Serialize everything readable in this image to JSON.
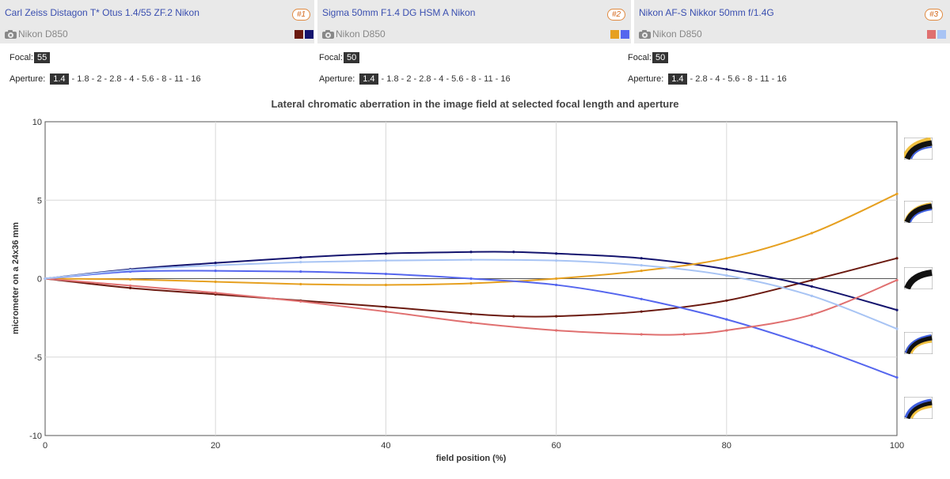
{
  "lenses": [
    {
      "name": "Carl Zeiss Distagon T* Otus 1.4/55 ZF.2 Nikon",
      "badge": "#1",
      "camera": "Nikon D850",
      "colors": [
        "#6b1a10",
        "#14146e"
      ],
      "focal_label": "Focal:",
      "focal": "55",
      "aperture_label": "Aperture:",
      "aperture": "1.4",
      "aperture_rest": " - 1.8 - 2 - 2.8 - 4 - 5.6 - 8 - 11 - 16"
    },
    {
      "name": "Sigma 50mm F1.4 DG HSM A Nikon",
      "badge": "#2",
      "camera": "Nikon D850",
      "colors": [
        "#e6a020",
        "#5566ee"
      ],
      "focal_label": "Focal:",
      "focal": "50",
      "aperture_label": "Aperture:",
      "aperture": "1.4",
      "aperture_rest": " - 1.8 - 2 - 2.8 - 4 - 5.6 - 8 - 11 - 16"
    },
    {
      "name": "Nikon AF-S Nikkor 50mm f/1.4G",
      "badge": "#3",
      "camera": "Nikon D850",
      "colors": [
        "#e07070",
        "#a8c4f4"
      ],
      "focal_label": "Focal:",
      "focal": "50",
      "aperture_label": "Aperture:",
      "aperture": "1.4",
      "aperture_rest": " - 2.8 - 4 - 5.6 - 8 - 11 - 16"
    }
  ],
  "chart_data": {
    "type": "line",
    "title": "Lateral chromatic aberration in the image field at selected focal length and aperture",
    "xlabel": "field position (%)",
    "ylabel": "micrometer on a 24x36 mm",
    "xlim": [
      0,
      100
    ],
    "ylim": [
      -10,
      10
    ],
    "xticks": [
      0,
      20,
      40,
      60,
      80,
      100
    ],
    "yticks": [
      -10,
      -5,
      0,
      5,
      10
    ],
    "grid": true,
    "series": [
      {
        "color": "#6b1a10",
        "x": [
          0,
          10,
          20,
          30,
          40,
          50,
          55,
          60,
          70,
          80,
          90,
          100
        ],
        "y": [
          0,
          -0.6,
          -1.0,
          -1.4,
          -1.8,
          -2.25,
          -2.4,
          -2.4,
          -2.1,
          -1.4,
          -0.1,
          1.3
        ]
      },
      {
        "color": "#14146e",
        "x": [
          0,
          10,
          20,
          30,
          40,
          50,
          55,
          60,
          70,
          80,
          90,
          100
        ],
        "y": [
          0,
          0.6,
          1.0,
          1.35,
          1.6,
          1.7,
          1.7,
          1.6,
          1.3,
          0.6,
          -0.5,
          -2.0
        ]
      },
      {
        "color": "#e6a020",
        "x": [
          0,
          10,
          20,
          30,
          40,
          50,
          60,
          70,
          80,
          90,
          100
        ],
        "y": [
          0,
          -0.05,
          -0.2,
          -0.35,
          -0.4,
          -0.3,
          0.0,
          0.5,
          1.3,
          2.9,
          5.4
        ]
      },
      {
        "color": "#5566ee",
        "x": [
          0,
          10,
          20,
          30,
          40,
          50,
          60,
          70,
          80,
          90,
          100
        ],
        "y": [
          0,
          0.45,
          0.5,
          0.45,
          0.3,
          0.0,
          -0.4,
          -1.3,
          -2.6,
          -4.3,
          -6.3
        ]
      },
      {
        "color": "#e07070",
        "x": [
          0,
          10,
          20,
          30,
          40,
          50,
          60,
          70,
          75,
          80,
          90,
          100
        ],
        "y": [
          0,
          -0.45,
          -0.9,
          -1.45,
          -2.1,
          -2.8,
          -3.3,
          -3.55,
          -3.55,
          -3.3,
          -2.3,
          -0.1
        ]
      },
      {
        "color": "#a8c4f4",
        "x": [
          0,
          10,
          20,
          30,
          40,
          50,
          60,
          70,
          80,
          90,
          100
        ],
        "y": [
          0,
          0.55,
          0.85,
          1.05,
          1.15,
          1.2,
          1.15,
          0.85,
          0.2,
          -1.1,
          -3.2
        ]
      }
    ]
  }
}
